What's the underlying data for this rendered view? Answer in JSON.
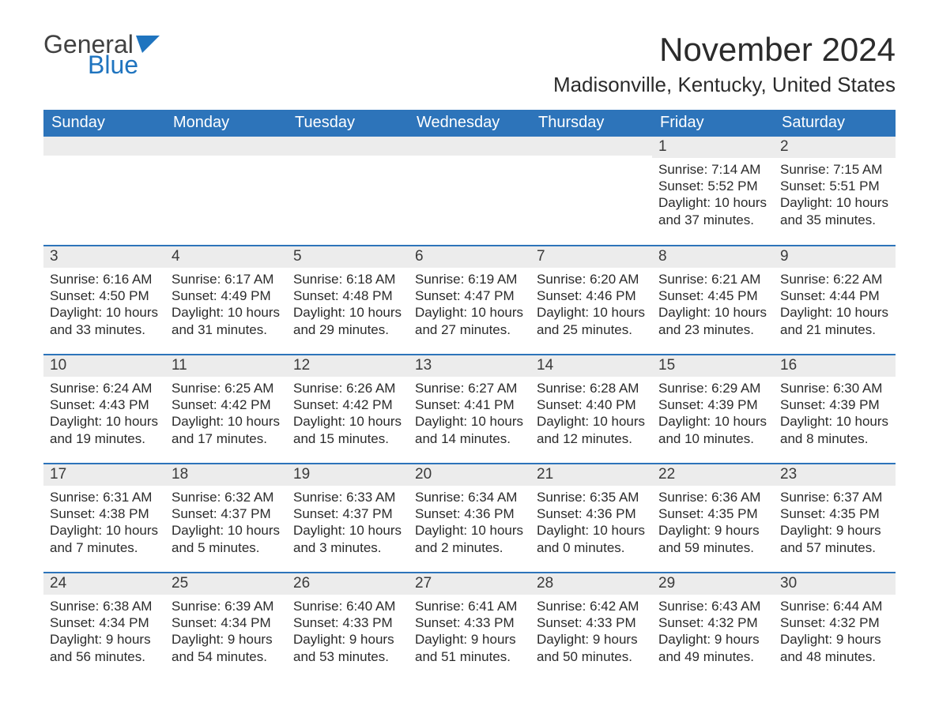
{
  "logo": {
    "word1": "General",
    "word2": "Blue",
    "word1_color": "#414141",
    "word2_color": "#1f74bf",
    "flag_color": "#1f74bf"
  },
  "header": {
    "month_title": "November 2024",
    "location": "Madisonville, Kentucky, United States"
  },
  "styling": {
    "header_bg": "#2d74ba",
    "header_text": "#ffffff",
    "daynum_bg": "#ececec",
    "row_border": "#2d74ba",
    "body_text": "#2b2b2b",
    "page_bg": "#ffffff",
    "header_fontsize": 20,
    "title_fontsize": 42,
    "location_fontsize": 26,
    "cell_fontsize": 17
  },
  "calendar": {
    "type": "table",
    "columns": [
      "Sunday",
      "Monday",
      "Tuesday",
      "Wednesday",
      "Thursday",
      "Friday",
      "Saturday"
    ],
    "weeks": [
      [
        {
          "day": "",
          "sunrise": "",
          "sunset": "",
          "daylight": ""
        },
        {
          "day": "",
          "sunrise": "",
          "sunset": "",
          "daylight": ""
        },
        {
          "day": "",
          "sunrise": "",
          "sunset": "",
          "daylight": ""
        },
        {
          "day": "",
          "sunrise": "",
          "sunset": "",
          "daylight": ""
        },
        {
          "day": "",
          "sunrise": "",
          "sunset": "",
          "daylight": ""
        },
        {
          "day": "1",
          "sunrise": "Sunrise: 7:14 AM",
          "sunset": "Sunset: 5:52 PM",
          "daylight": "Daylight: 10 hours and 37 minutes."
        },
        {
          "day": "2",
          "sunrise": "Sunrise: 7:15 AM",
          "sunset": "Sunset: 5:51 PM",
          "daylight": "Daylight: 10 hours and 35 minutes."
        }
      ],
      [
        {
          "day": "3",
          "sunrise": "Sunrise: 6:16 AM",
          "sunset": "Sunset: 4:50 PM",
          "daylight": "Daylight: 10 hours and 33 minutes."
        },
        {
          "day": "4",
          "sunrise": "Sunrise: 6:17 AM",
          "sunset": "Sunset: 4:49 PM",
          "daylight": "Daylight: 10 hours and 31 minutes."
        },
        {
          "day": "5",
          "sunrise": "Sunrise: 6:18 AM",
          "sunset": "Sunset: 4:48 PM",
          "daylight": "Daylight: 10 hours and 29 minutes."
        },
        {
          "day": "6",
          "sunrise": "Sunrise: 6:19 AM",
          "sunset": "Sunset: 4:47 PM",
          "daylight": "Daylight: 10 hours and 27 minutes."
        },
        {
          "day": "7",
          "sunrise": "Sunrise: 6:20 AM",
          "sunset": "Sunset: 4:46 PM",
          "daylight": "Daylight: 10 hours and 25 minutes."
        },
        {
          "day": "8",
          "sunrise": "Sunrise: 6:21 AM",
          "sunset": "Sunset: 4:45 PM",
          "daylight": "Daylight: 10 hours and 23 minutes."
        },
        {
          "day": "9",
          "sunrise": "Sunrise: 6:22 AM",
          "sunset": "Sunset: 4:44 PM",
          "daylight": "Daylight: 10 hours and 21 minutes."
        }
      ],
      [
        {
          "day": "10",
          "sunrise": "Sunrise: 6:24 AM",
          "sunset": "Sunset: 4:43 PM",
          "daylight": "Daylight: 10 hours and 19 minutes."
        },
        {
          "day": "11",
          "sunrise": "Sunrise: 6:25 AM",
          "sunset": "Sunset: 4:42 PM",
          "daylight": "Daylight: 10 hours and 17 minutes."
        },
        {
          "day": "12",
          "sunrise": "Sunrise: 6:26 AM",
          "sunset": "Sunset: 4:42 PM",
          "daylight": "Daylight: 10 hours and 15 minutes."
        },
        {
          "day": "13",
          "sunrise": "Sunrise: 6:27 AM",
          "sunset": "Sunset: 4:41 PM",
          "daylight": "Daylight: 10 hours and 14 minutes."
        },
        {
          "day": "14",
          "sunrise": "Sunrise: 6:28 AM",
          "sunset": "Sunset: 4:40 PM",
          "daylight": "Daylight: 10 hours and 12 minutes."
        },
        {
          "day": "15",
          "sunrise": "Sunrise: 6:29 AM",
          "sunset": "Sunset: 4:39 PM",
          "daylight": "Daylight: 10 hours and 10 minutes."
        },
        {
          "day": "16",
          "sunrise": "Sunrise: 6:30 AM",
          "sunset": "Sunset: 4:39 PM",
          "daylight": "Daylight: 10 hours and 8 minutes."
        }
      ],
      [
        {
          "day": "17",
          "sunrise": "Sunrise: 6:31 AM",
          "sunset": "Sunset: 4:38 PM",
          "daylight": "Daylight: 10 hours and 7 minutes."
        },
        {
          "day": "18",
          "sunrise": "Sunrise: 6:32 AM",
          "sunset": "Sunset: 4:37 PM",
          "daylight": "Daylight: 10 hours and 5 minutes."
        },
        {
          "day": "19",
          "sunrise": "Sunrise: 6:33 AM",
          "sunset": "Sunset: 4:37 PM",
          "daylight": "Daylight: 10 hours and 3 minutes."
        },
        {
          "day": "20",
          "sunrise": "Sunrise: 6:34 AM",
          "sunset": "Sunset: 4:36 PM",
          "daylight": "Daylight: 10 hours and 2 minutes."
        },
        {
          "day": "21",
          "sunrise": "Sunrise: 6:35 AM",
          "sunset": "Sunset: 4:36 PM",
          "daylight": "Daylight: 10 hours and 0 minutes."
        },
        {
          "day": "22",
          "sunrise": "Sunrise: 6:36 AM",
          "sunset": "Sunset: 4:35 PM",
          "daylight": "Daylight: 9 hours and 59 minutes."
        },
        {
          "day": "23",
          "sunrise": "Sunrise: 6:37 AM",
          "sunset": "Sunset: 4:35 PM",
          "daylight": "Daylight: 9 hours and 57 minutes."
        }
      ],
      [
        {
          "day": "24",
          "sunrise": "Sunrise: 6:38 AM",
          "sunset": "Sunset: 4:34 PM",
          "daylight": "Daylight: 9 hours and 56 minutes."
        },
        {
          "day": "25",
          "sunrise": "Sunrise: 6:39 AM",
          "sunset": "Sunset: 4:34 PM",
          "daylight": "Daylight: 9 hours and 54 minutes."
        },
        {
          "day": "26",
          "sunrise": "Sunrise: 6:40 AM",
          "sunset": "Sunset: 4:33 PM",
          "daylight": "Daylight: 9 hours and 53 minutes."
        },
        {
          "day": "27",
          "sunrise": "Sunrise: 6:41 AM",
          "sunset": "Sunset: 4:33 PM",
          "daylight": "Daylight: 9 hours and 51 minutes."
        },
        {
          "day": "28",
          "sunrise": "Sunrise: 6:42 AM",
          "sunset": "Sunset: 4:33 PM",
          "daylight": "Daylight: 9 hours and 50 minutes."
        },
        {
          "day": "29",
          "sunrise": "Sunrise: 6:43 AM",
          "sunset": "Sunset: 4:32 PM",
          "daylight": "Daylight: 9 hours and 49 minutes."
        },
        {
          "day": "30",
          "sunrise": "Sunrise: 6:44 AM",
          "sunset": "Sunset: 4:32 PM",
          "daylight": "Daylight: 9 hours and 48 minutes."
        }
      ]
    ]
  }
}
